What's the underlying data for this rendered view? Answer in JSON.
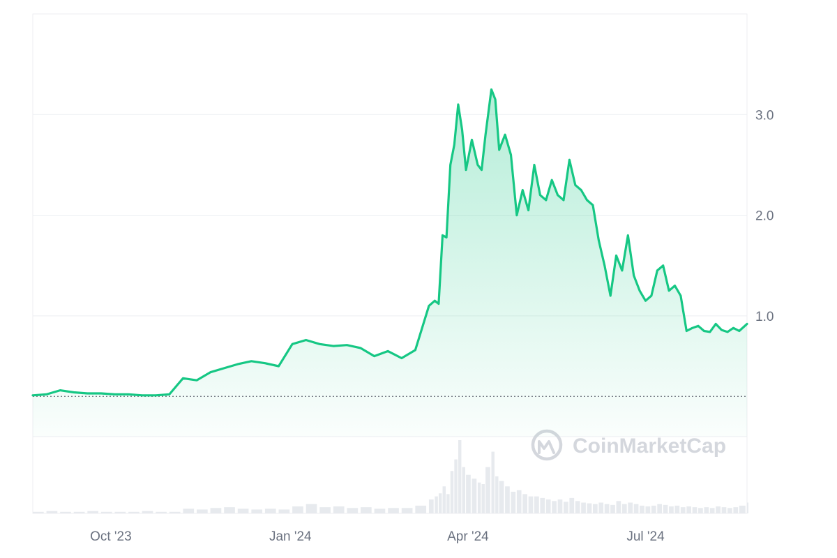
{
  "chart_data": {
    "type": "area",
    "title": "",
    "xlabel": "",
    "ylabel": "",
    "x_tick_labels": [
      "Oct '23",
      "Jan '24",
      "Apr '24",
      "Jul '24"
    ],
    "x_tick_dates": [
      "2023-10-01",
      "2024-01-01",
      "2024-04-01",
      "2024-07-01"
    ],
    "x_range": [
      "2023-08-22",
      "2024-08-22"
    ],
    "y_ticks": [
      1.0,
      2.0,
      3.0
    ],
    "y_tick_labels": [
      "1.0",
      "2.0",
      "3.0"
    ],
    "ylim": [
      -0.2,
      4.0
    ],
    "grid": "horizontal",
    "baseline_reference": 0.2,
    "line_color": "#16c784",
    "series": [
      {
        "x": [
          "2023-08-22",
          "2023-08-29",
          "2023-09-05",
          "2023-09-12",
          "2023-09-19",
          "2023-09-26",
          "2023-10-03",
          "2023-10-10",
          "2023-10-17",
          "2023-10-24",
          "2023-10-31",
          "2023-11-07",
          "2023-11-14",
          "2023-11-21",
          "2023-11-28",
          "2023-12-05",
          "2023-12-12",
          "2023-12-19",
          "2023-12-26",
          "2024-01-02",
          "2024-01-09",
          "2024-01-16",
          "2024-01-23",
          "2024-01-30",
          "2024-02-06",
          "2024-02-13",
          "2024-02-20",
          "2024-02-27",
          "2024-03-05",
          "2024-03-12",
          "2024-03-15",
          "2024-03-17",
          "2024-03-19",
          "2024-03-21",
          "2024-03-23",
          "2024-03-25",
          "2024-03-27",
          "2024-03-29",
          "2024-03-31",
          "2024-04-03",
          "2024-04-06",
          "2024-04-08",
          "2024-04-10",
          "2024-04-13",
          "2024-04-15",
          "2024-04-17",
          "2024-04-20",
          "2024-04-23",
          "2024-04-26",
          "2024-04-29",
          "2024-05-02",
          "2024-05-05",
          "2024-05-08",
          "2024-05-11",
          "2024-05-14",
          "2024-05-17",
          "2024-05-20",
          "2024-05-23",
          "2024-05-26",
          "2024-05-29",
          "2024-06-01",
          "2024-06-04",
          "2024-06-07",
          "2024-06-10",
          "2024-06-13",
          "2024-06-16",
          "2024-06-19",
          "2024-06-22",
          "2024-06-25",
          "2024-06-28",
          "2024-07-01",
          "2024-07-04",
          "2024-07-07",
          "2024-07-10",
          "2024-07-13",
          "2024-07-16",
          "2024-07-19",
          "2024-07-22",
          "2024-07-25",
          "2024-07-28",
          "2024-07-31",
          "2024-08-03",
          "2024-08-06",
          "2024-08-09",
          "2024-08-12",
          "2024-08-15",
          "2024-08-18",
          "2024-08-22"
        ],
        "y": [
          0.21,
          0.22,
          0.26,
          0.24,
          0.23,
          0.23,
          0.22,
          0.22,
          0.21,
          0.21,
          0.22,
          0.38,
          0.36,
          0.44,
          0.48,
          0.52,
          0.55,
          0.53,
          0.5,
          0.72,
          0.76,
          0.72,
          0.7,
          0.71,
          0.68,
          0.6,
          0.65,
          0.58,
          0.66,
          1.1,
          1.15,
          1.12,
          1.8,
          1.78,
          2.5,
          2.7,
          3.1,
          2.85,
          2.45,
          2.75,
          2.5,
          2.45,
          2.8,
          3.25,
          3.15,
          2.65,
          2.8,
          2.6,
          2.0,
          2.25,
          2.05,
          2.5,
          2.2,
          2.15,
          2.35,
          2.2,
          2.15,
          2.55,
          2.3,
          2.25,
          2.15,
          2.1,
          1.75,
          1.5,
          1.2,
          1.6,
          1.45,
          1.8,
          1.4,
          1.25,
          1.15,
          1.2,
          1.45,
          1.5,
          1.25,
          1.3,
          1.2,
          0.85,
          0.88,
          0.9,
          0.85,
          0.84,
          0.92,
          0.86,
          0.84,
          0.88,
          0.85,
          0.92
        ]
      }
    ],
    "volume": {
      "values": [
        2,
        3,
        2,
        2,
        3,
        2,
        2,
        2,
        3,
        2,
        2,
        6,
        5,
        7,
        8,
        6,
        5,
        6,
        5,
        9,
        12,
        8,
        9,
        7,
        8,
        6,
        7,
        7,
        10,
        18,
        22,
        26,
        35,
        25,
        55,
        70,
        95,
        60,
        50,
        45,
        40,
        38,
        60,
        80,
        48,
        42,
        35,
        28,
        30,
        25,
        22,
        22,
        20,
        18,
        16,
        18,
        15,
        20,
        16,
        14,
        13,
        12,
        14,
        12,
        11,
        16,
        12,
        14,
        12,
        10,
        9,
        10,
        12,
        11,
        9,
        10,
        8,
        9,
        8,
        7,
        8,
        7,
        9,
        8,
        7,
        8,
        10,
        14
      ]
    }
  },
  "watermark": {
    "text": "CoinMarketCap",
    "icon": "coinmarketcap-logo-icon"
  }
}
